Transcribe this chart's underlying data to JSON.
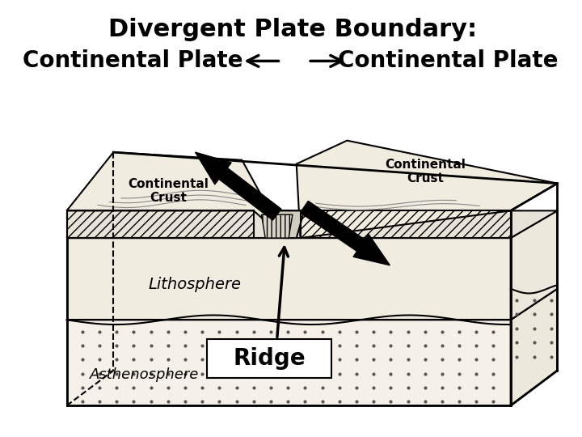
{
  "title_line1": "Divergent Plate Boundary:",
  "title_line2_left": "Continental Plate",
  "title_line2_right": "Continental Plate",
  "label_left_crust": "Continental\nCrust",
  "label_right_crust": "Continental\nCrust",
  "label_lithosphere": "Lithosphere",
  "label_asthenosphere": "Asthenosphere",
  "label_ridge": "Ridge",
  "bg_color": "#ffffff",
  "line_color": "#000000",
  "fill_light": "#f0ece0",
  "fill_dot": "#e8e0d0",
  "hatch_color": "#000000"
}
